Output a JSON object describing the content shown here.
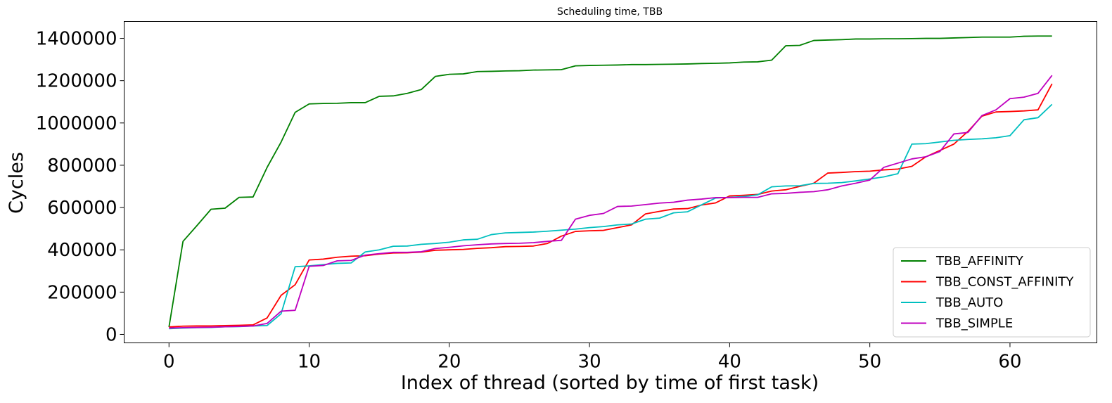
{
  "chart_data": {
    "type": "line",
    "title": "Scheduling time, TBB",
    "xlabel": "Index of thread (sorted by time of first task)",
    "ylabel": "Cycles",
    "xlim": [
      -3.2,
      66.2
    ],
    "ylim": [
      -40000,
      1480000
    ],
    "x_ticks": [
      0,
      10,
      20,
      30,
      40,
      50,
      60
    ],
    "y_ticks": [
      0,
      200000,
      400000,
      600000,
      800000,
      1000000,
      1200000,
      1400000
    ],
    "grid": false,
    "legend_position": "bottom-right",
    "x": [
      0,
      1,
      2,
      3,
      4,
      5,
      6,
      7,
      8,
      9,
      10,
      11,
      12,
      13,
      14,
      15,
      16,
      17,
      18,
      19,
      20,
      21,
      22,
      23,
      24,
      25,
      26,
      27,
      28,
      29,
      30,
      31,
      32,
      33,
      34,
      35,
      36,
      37,
      38,
      39,
      40,
      41,
      42,
      43,
      44,
      45,
      46,
      47,
      48,
      49,
      50,
      51,
      52,
      53,
      54,
      55,
      56,
      57,
      58,
      59,
      60,
      61,
      62,
      63
    ],
    "series": [
      {
        "name": "TBB_AFFINITY",
        "color": "#008000",
        "values": [
          35000,
          440000,
          515000,
          592000,
          597000,
          648000,
          650000,
          790000,
          910000,
          1050000,
          1090000,
          1092000,
          1093000,
          1096000,
          1096000,
          1126000,
          1128000,
          1140000,
          1158000,
          1220000,
          1230000,
          1232000,
          1243000,
          1244000,
          1246000,
          1247000,
          1250000,
          1251000,
          1252000,
          1270000,
          1272000,
          1273000,
          1274000,
          1276000,
          1276000,
          1277000,
          1278000,
          1279000,
          1281000,
          1282000,
          1284000,
          1288000,
          1289000,
          1297000,
          1365000,
          1367000,
          1390000,
          1392000,
          1394000,
          1397000,
          1397000,
          1398000,
          1398000,
          1399000,
          1400000,
          1400000,
          1402000,
          1404000,
          1406000,
          1406000,
          1406000,
          1410000,
          1411000,
          1411000
        ]
      },
      {
        "name": "TBB_CONST_AFFINITY",
        "color": "#ff0000",
        "values": [
          35000,
          39000,
          40000,
          40000,
          42000,
          43000,
          45000,
          78000,
          185000,
          235000,
          352000,
          356000,
          365000,
          370000,
          372000,
          380000,
          385000,
          386000,
          389000,
          398000,
          400000,
          402000,
          407000,
          410000,
          415000,
          416000,
          418000,
          430000,
          465000,
          487000,
          490000,
          492000,
          505000,
          518000,
          570000,
          582000,
          593000,
          595000,
          612000,
          622000,
          655000,
          658000,
          662000,
          678000,
          684000,
          700000,
          715000,
          763000,
          766000,
          770000,
          772000,
          778000,
          782000,
          795000,
          840000,
          870000,
          900000,
          960000,
          1032000,
          1052000,
          1054000,
          1057000,
          1062000,
          1185000
        ]
      },
      {
        "name": "TBB_AUTO",
        "color": "#00bfbf",
        "values": [
          27000,
          30000,
          32000,
          33000,
          36000,
          37000,
          40000,
          42000,
          98000,
          320000,
          324000,
          330000,
          336000,
          338000,
          390000,
          400000,
          417000,
          418000,
          426000,
          430000,
          436000,
          447000,
          450000,
          472000,
          480000,
          482000,
          484000,
          488000,
          493000,
          498000,
          505000,
          510000,
          518000,
          522000,
          545000,
          550000,
          575000,
          580000,
          613000,
          645000,
          648000,
          652000,
          660000,
          698000,
          702000,
          703000,
          714000,
          715000,
          718000,
          726000,
          735000,
          745000,
          760000,
          900000,
          902000,
          910000,
          918000,
          922000,
          925000,
          930000,
          940000,
          1015000,
          1025000,
          1088000
        ]
      },
      {
        "name": "TBB_SIMPLE",
        "color": "#bf00bf",
        "values": [
          30000,
          32000,
          33000,
          34000,
          36000,
          38000,
          40000,
          52000,
          110000,
          114000,
          322000,
          326000,
          348000,
          350000,
          375000,
          382000,
          388000,
          388000,
          391000,
          406000,
          412000,
          419000,
          424000,
          428000,
          430000,
          431000,
          434000,
          440000,
          445000,
          545000,
          563000,
          572000,
          605000,
          607000,
          614000,
          621000,
          625000,
          635000,
          640000,
          647000,
          647000,
          648000,
          648000,
          665000,
          667000,
          672000,
          675000,
          684000,
          702000,
          715000,
          730000,
          790000,
          810000,
          830000,
          840000,
          865000,
          948000,
          955000,
          1035000,
          1062000,
          1115000,
          1122000,
          1140000,
          1225000
        ]
      }
    ]
  }
}
